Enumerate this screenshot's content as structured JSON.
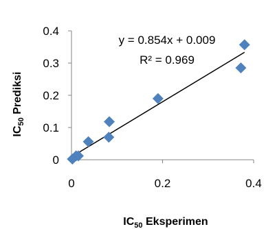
{
  "chart_data": {
    "type": "scatter",
    "x": [
      0.002,
      0.01,
      0.015,
      0.037,
      0.082,
      0.083,
      0.19,
      0.372,
      0.38
    ],
    "y": [
      0.002,
      0.012,
      0.012,
      0.056,
      0.07,
      0.118,
      0.19,
      0.285,
      0.357
    ],
    "xlim": [
      0,
      0.4
    ],
    "ylim": [
      0,
      0.4
    ],
    "x_ticks": [
      "0",
      "0.2",
      "0.4"
    ],
    "y_ticks": [
      "0",
      "0.1",
      "0.2",
      "0.3",
      "0.4"
    ],
    "x_tick_values": [
      0,
      0.2,
      0.4
    ],
    "y_tick_values": [
      0,
      0.1,
      0.2,
      0.3,
      0.4
    ],
    "xlabel": {
      "base": "IC",
      "sub": "50",
      "rest": " Eksperimen"
    },
    "ylabel": {
      "base": "IC",
      "sub": "50",
      "rest": " Prediksi"
    },
    "trendline": {
      "slope": 0.854,
      "intercept": 0.009,
      "x_range": [
        0,
        0.38
      ]
    },
    "equation_text": "y = 0.854x + 0.009",
    "r2_text": "R² = 0.969",
    "grid": false,
    "marker_color": "#4f81bd",
    "line_color": "#000000"
  }
}
